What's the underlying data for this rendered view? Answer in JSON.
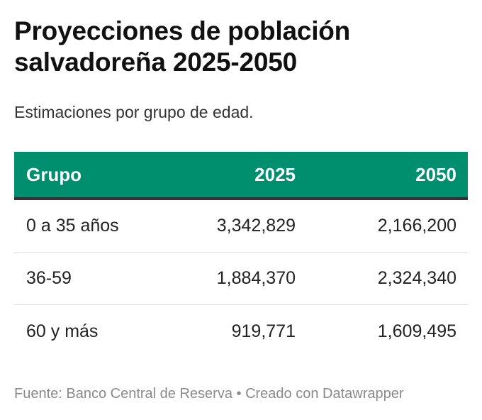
{
  "title": "Proyecciones de población salvadoreña 2025-2050",
  "subtitle": "Estimaciones por grupo de edad.",
  "colors": {
    "header_bg": "#008f6e",
    "header_text": "#ffffff",
    "header_border": "#333333"
  },
  "chart_data": {
    "type": "table",
    "title": "Proyecciones de población salvadoreña 2025-2050",
    "columns": [
      "Grupo",
      "2025",
      "2050"
    ],
    "rows": [
      [
        "0 a 35 años",
        "3,342,829",
        "2,166,200"
      ],
      [
        "36-59",
        "1,884,370",
        "2,324,340"
      ],
      [
        "60 y más",
        "919,771",
        "1,609,495"
      ]
    ]
  },
  "footer": "Fuente: Banco Central de Reserva • Creado con Datawrapper"
}
